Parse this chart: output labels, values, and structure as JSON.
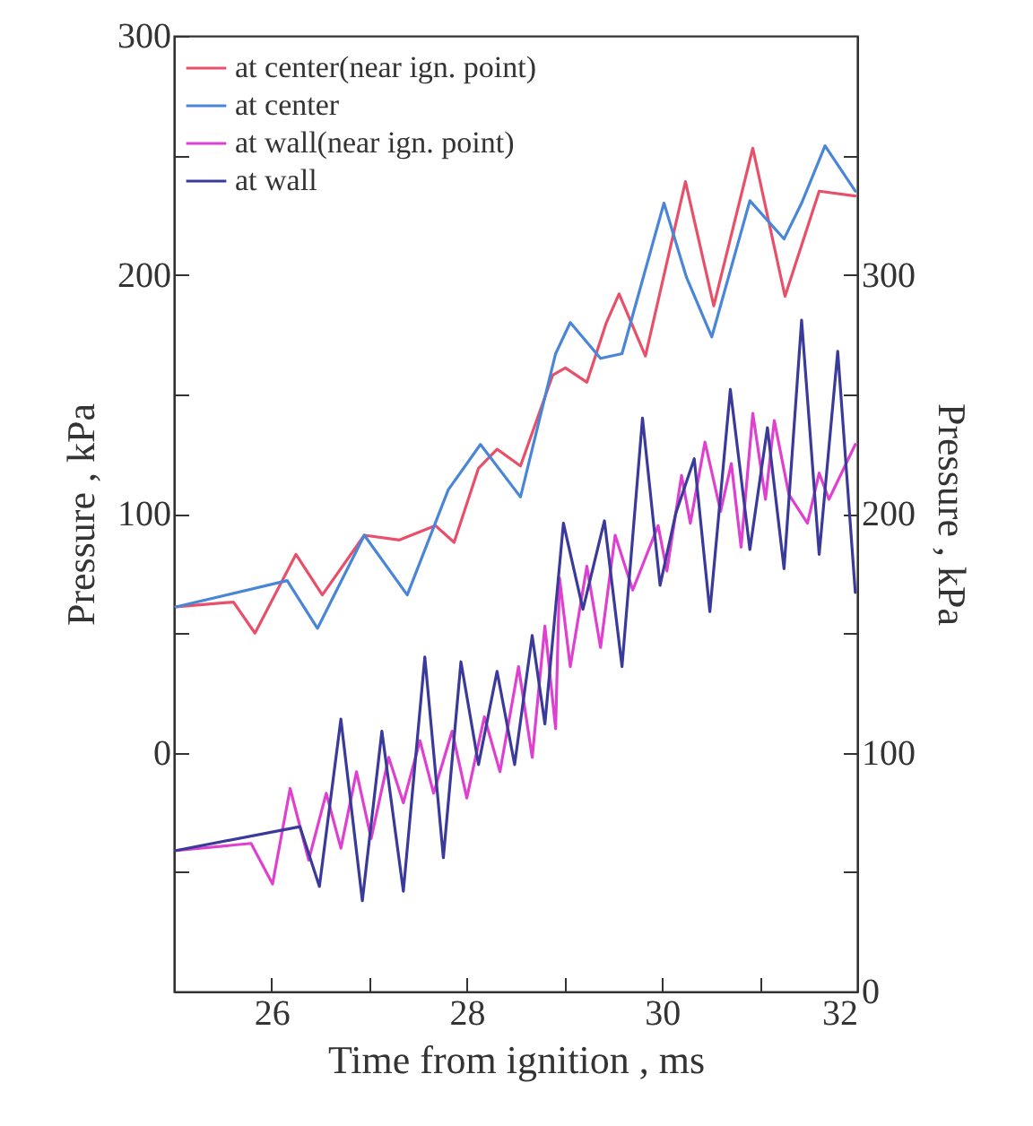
{
  "chart_data": {
    "type": "line",
    "xlabel": "Time from ignition , ms",
    "ylabel": "Pressure , kPa",
    "y2label": "Pressure , kPa",
    "xlim": [
      25,
      32
    ],
    "xticks": [
      26,
      {
        "value": 27,
        "label": null
      },
      28,
      {
        "value": 29,
        "label": null
      },
      30,
      {
        "value": 31,
        "label": null
      },
      32
    ],
    "ylim": [
      -100,
      300
    ],
    "yticks": [
      {
        "value": -50,
        "label": null
      },
      0,
      {
        "value": 50,
        "label": null
      },
      100,
      {
        "value": 150,
        "label": null
      },
      200,
      {
        "value": 250,
        "label": null
      },
      300
    ],
    "y2lim": [
      0,
      400
    ],
    "y2ticks": [
      0,
      {
        "value": 50,
        "label": null
      },
      100,
      {
        "value": 150,
        "label": null
      },
      200,
      {
        "value": 250,
        "label": null
      },
      300,
      {
        "value": 350,
        "label": null
      }
    ],
    "grid": false,
    "legend": "top left",
    "series": [
      {
        "name": "at center(near ign. point)",
        "color": "#e8506a",
        "x": [
          25.02,
          25.61,
          25.83,
          26.25,
          26.52,
          26.95,
          27.31,
          27.68,
          27.87,
          28.12,
          28.31,
          28.55,
          28.88,
          29.01,
          29.23,
          29.43,
          29.56,
          29.83,
          30.24,
          30.53,
          30.93,
          31.26,
          31.61,
          31.98
        ],
        "values": [
          61,
          63,
          50,
          83,
          66,
          91,
          89,
          95,
          88,
          119,
          127,
          120,
          158,
          161,
          155,
          180,
          192,
          166,
          239,
          187,
          253,
          191,
          235,
          233
        ]
      },
      {
        "name": "at center",
        "color": "#4a86d8",
        "x": [
          25.02,
          26.16,
          26.47,
          26.95,
          27.39,
          27.81,
          28.14,
          28.55,
          28.91,
          29.06,
          29.37,
          29.59,
          30.02,
          30.25,
          30.51,
          30.9,
          31.25,
          31.43,
          31.67,
          31.98
        ],
        "values": [
          61,
          72,
          52,
          91,
          66,
          110,
          129,
          107,
          167,
          180,
          165,
          167,
          230,
          199,
          174,
          231,
          215,
          230,
          254,
          235
        ]
      },
      {
        "name": "at wall(near ign. point)",
        "color": "#e040d0",
        "axis": "y2",
        "x": [
          25.02,
          25.79,
          26.01,
          26.19,
          26.38,
          26.56,
          26.71,
          26.87,
          27.02,
          27.2,
          27.35,
          27.52,
          27.66,
          27.85,
          28.0,
          28.18,
          28.34,
          28.53,
          28.67,
          28.8,
          28.91,
          28.95,
          29.06,
          29.23,
          29.37,
          29.52,
          29.7,
          29.96,
          30.05,
          30.2,
          30.29,
          30.44,
          30.6,
          30.71,
          30.81,
          30.93,
          31.06,
          31.15,
          31.3,
          31.49,
          31.61,
          31.71,
          31.98
        ],
        "values": [
          59,
          62,
          45,
          85,
          55,
          83,
          60,
          92,
          64,
          98,
          79,
          105,
          83,
          109,
          81,
          115,
          92,
          136,
          98,
          153,
          110,
          173,
          136,
          178,
          144,
          191,
          168,
          195,
          176,
          216,
          196,
          230,
          201,
          221,
          186,
          242,
          206,
          239,
          208,
          196,
          217,
          206,
          229
        ]
      },
      {
        "name": "at wall",
        "color": "#3a3a9a",
        "axis": "y2",
        "x": [
          25.02,
          26.29,
          26.49,
          26.71,
          26.93,
          27.13,
          27.35,
          27.57,
          27.76,
          27.94,
          28.12,
          28.31,
          28.49,
          28.67,
          28.8,
          28.99,
          29.19,
          29.41,
          29.59,
          29.8,
          29.98,
          30.14,
          30.33,
          30.49,
          30.7,
          30.9,
          31.08,
          31.25,
          31.43,
          31.61,
          31.8,
          31.98
        ],
        "values": [
          59,
          69,
          44,
          114,
          38,
          109,
          42,
          140,
          56,
          138,
          95,
          134,
          95,
          149,
          112,
          196,
          160,
          197,
          136,
          240,
          170,
          200,
          223,
          159,
          252,
          185,
          236,
          177,
          281,
          183,
          268,
          167
        ]
      }
    ]
  }
}
